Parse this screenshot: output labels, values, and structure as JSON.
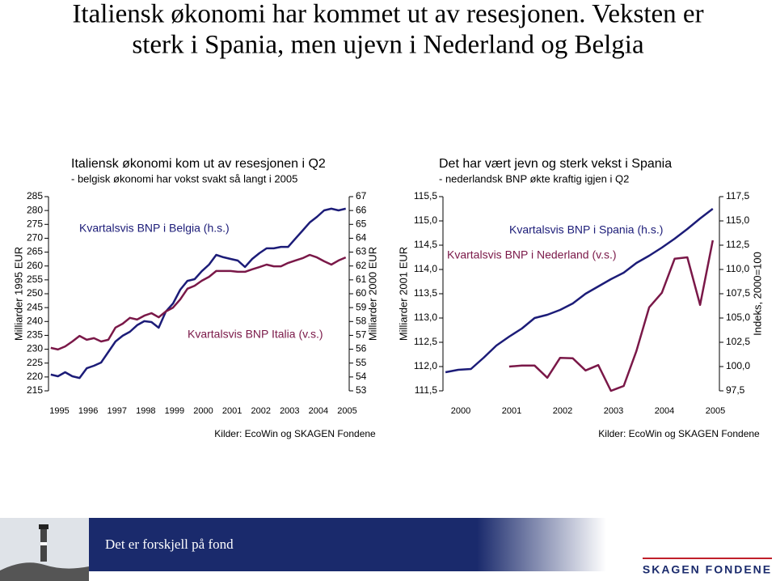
{
  "title_lines": [
    "Italiensk økonomi har kommet ut av resesjonen. Veksten er",
    "sterk i Spania, men ujevn i Nederland og Belgia"
  ],
  "chart_data": [
    {
      "type": "line",
      "title": "Italiensk økonomi kom ut av resesjonen i Q2",
      "subtitle": "- belgisk økonomi har vokst svakt så langt i 2005",
      "y_label": "Milliarder 1995 EUR",
      "y2_label": "Milliarder 2000 EUR",
      "source": "Kilder: EcoWin og SKAGEN Fondene",
      "x": [
        1995,
        1995.25,
        1995.5,
        1995.75,
        1996,
        1996.25,
        1996.5,
        1996.75,
        1997,
        1997.25,
        1997.5,
        1997.75,
        1998,
        1998.25,
        1998.5,
        1998.75,
        1999,
        1999.25,
        1999.5,
        1999.75,
        2000,
        2000.25,
        2000.5,
        2000.75,
        2001,
        2001.25,
        2001.5,
        2001.75,
        2002,
        2002.25,
        2002.5,
        2002.75,
        2003,
        2003.25,
        2003.5,
        2003.75,
        2004,
        2004.25,
        2004.5,
        2004.75,
        2005,
        2005.25
      ],
      "xlim": [
        1994.92,
        2005.37
      ],
      "xticks": [
        1995,
        1996,
        1997,
        1998,
        1999,
        2000,
        2001,
        2002,
        2003,
        2004,
        2005
      ],
      "ylim": [
        215,
        285
      ],
      "yticks": [
        215,
        220,
        225,
        230,
        235,
        240,
        245,
        250,
        255,
        260,
        265,
        270,
        275,
        280,
        285
      ],
      "y2lim": [
        53,
        67
      ],
      "y2ticks": [
        53,
        54,
        55,
        56,
        57,
        58,
        59,
        60,
        61,
        62,
        63,
        64,
        65,
        66,
        67
      ],
      "series": [
        {
          "name": "Kvartalsvis BNP i Belgia (h.s.)",
          "color": "#1c1c78",
          "axis": "y2",
          "values": [
            54.17,
            54.05,
            54.34,
            54.05,
            53.93,
            54.63,
            54.81,
            55.04,
            55.8,
            56.56,
            56.97,
            57.26,
            57.73,
            58.02,
            57.96,
            57.55,
            58.72,
            59.3,
            60.29,
            60.93,
            61.05,
            61.63,
            62.1,
            62.8,
            62.63,
            62.51,
            62.39,
            61.93,
            62.51,
            62.92,
            63.27,
            63.27,
            63.38,
            63.38,
            63.97,
            64.55,
            65.14,
            65.54,
            66.01,
            66.13,
            66.01,
            66.13
          ]
        },
        {
          "name": "Kvartalsvis BNP Italia (v.s.)",
          "color": "#7a1848",
          "values": [
            230.5,
            229.9,
            231.0,
            232.8,
            234.8,
            233.4,
            234.0,
            232.8,
            233.4,
            237.8,
            239.2,
            241.3,
            240.7,
            242.1,
            243.0,
            241.5,
            243.6,
            245.0,
            248.0,
            251.8,
            252.9,
            254.7,
            256.1,
            258.2,
            258.2,
            258.2,
            257.9,
            257.9,
            258.8,
            259.6,
            260.5,
            259.9,
            259.9,
            261.1,
            262.0,
            262.8,
            264.0,
            263.1,
            261.7,
            260.5,
            262.0,
            263.1
          ]
        }
      ]
    },
    {
      "type": "line",
      "title": "Det har vært jevn og sterk vekst i Spania",
      "subtitle": "- nederlandsk BNP økte kraftig igjen i Q2",
      "y_label": "Milliarder 2001 EUR",
      "y2_label": "Indeks, 2000=100",
      "source": "Kilder: EcoWin og SKAGEN Fondene",
      "x": [
        2000,
        2000.25,
        2000.5,
        2000.75,
        2001,
        2001.25,
        2001.5,
        2001.75,
        2002,
        2002.25,
        2002.5,
        2002.75,
        2003,
        2003.25,
        2003.5,
        2003.75,
        2004,
        2004.25,
        2004.5,
        2004.75,
        2005,
        2005.25
      ],
      "xlim": [
        1999.95,
        2005.38
      ],
      "xticks": [
        2000,
        2001,
        2002,
        2003,
        2004,
        2005
      ],
      "ylim": [
        111.5,
        115.5
      ],
      "yticks": [
        {
          "value": 111.5,
          "label": "111,5"
        },
        {
          "value": 112,
          "label": "112,0"
        },
        {
          "value": 112.5,
          "label": "112,5"
        },
        {
          "value": 113,
          "label": "113,0"
        },
        {
          "value": 113.5,
          "label": "113,5"
        },
        {
          "value": 114,
          "label": "114,0"
        },
        {
          "value": 114.5,
          "label": "114,5"
        },
        {
          "value": 115,
          "label": "115,0"
        },
        {
          "value": 115.5,
          "label": "115,5"
        }
      ],
      "y2lim": [
        97.5,
        117.5
      ],
      "y2ticks": [
        {
          "value": 97.5,
          "label": "97,5"
        },
        {
          "value": 100,
          "label": "100,0"
        },
        {
          "value": 102.5,
          "label": "102,5"
        },
        {
          "value": 105,
          "label": "105,0"
        },
        {
          "value": 107.5,
          "label": "107,5"
        },
        {
          "value": 110,
          "label": "110,0"
        },
        {
          "value": 112.5,
          "label": "112,5"
        },
        {
          "value": 115,
          "label": "115,0"
        },
        {
          "value": 117.5,
          "label": "117,5"
        }
      ],
      "series": [
        {
          "name": "Kvartalsvis BNP i Spania (h.s.)",
          "color": "#1c1c78",
          "axis": "y2",
          "values": [
            99.42,
            99.67,
            99.75,
            100.92,
            102.17,
            103.08,
            103.92,
            105.0,
            105.33,
            105.83,
            106.5,
            107.5,
            108.25,
            109.0,
            109.67,
            110.67,
            111.42,
            112.25,
            113.17,
            114.17,
            115.25,
            116.25
          ]
        },
        {
          "name": "Kvartalsvis BNP i Nederland (v.s.)",
          "color": "#7a1848",
          "values": [
            null,
            null,
            null,
            null,
            null,
            112.0,
            112.02,
            112.02,
            111.77,
            112.18,
            112.17,
            111.92,
            112.03,
            111.5,
            111.6,
            112.32,
            113.22,
            113.52,
            114.22,
            114.25,
            113.27,
            114.6
          ]
        }
      ]
    }
  ],
  "footer": {
    "tagline": "Det er forskjell på fond",
    "logo": "SKAGEN FONDENE"
  }
}
